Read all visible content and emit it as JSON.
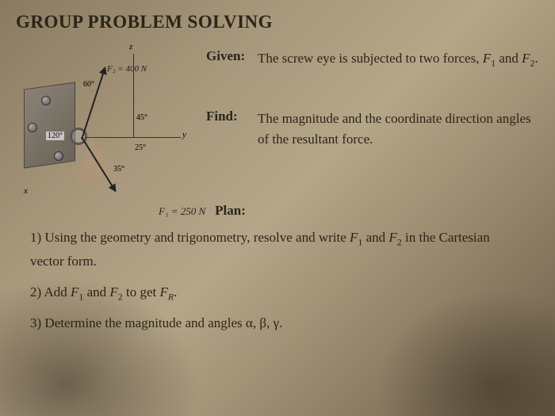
{
  "title": "GROUP PROBLEM SOLVING",
  "given": {
    "label": "Given:",
    "text_part1": "The screw eye is subjected to two forces, ",
    "f1": "F",
    "f1_sub": "1",
    "and": " and ",
    "f2": "F",
    "f2_sub": "2",
    "period": "."
  },
  "find": {
    "label": "Find:",
    "text": "The magnitude and the coordinate direction angles of the resultant force."
  },
  "plan": {
    "label": "Plan:",
    "f1_value": "F₁ = 250 N"
  },
  "diagram": {
    "f2_label": "F₂ = 400 N",
    "z": "z",
    "y": "y",
    "x": "x",
    "angle_60": "60°",
    "angle_45": "45°",
    "angle_120": "120°",
    "angle_25": "25°",
    "angle_35": "35°"
  },
  "steps": {
    "s1_num": "1) ",
    "s1_a": "Using the geometry and trigonometry, resolve and write ",
    "s1_f1": "F",
    "s1_f1sub": "1",
    "s1_b": " and ",
    "s1_f2": "F",
    "s1_f2sub": "2",
    "s1_c": " in the Cartesian vector form.",
    "s2_num": "2) ",
    "s2_a": "Add ",
    "s2_f1": "F",
    "s2_f1sub": "1",
    "s2_b": " and ",
    "s2_f2": "F",
    "s2_f2sub": "2",
    "s2_c": " to get ",
    "s2_fr": "F",
    "s2_frsub": "R",
    "s2_d": ".",
    "s3_num": "3) ",
    "s3_a": "Determine the magnitude and angles α, β, γ."
  }
}
